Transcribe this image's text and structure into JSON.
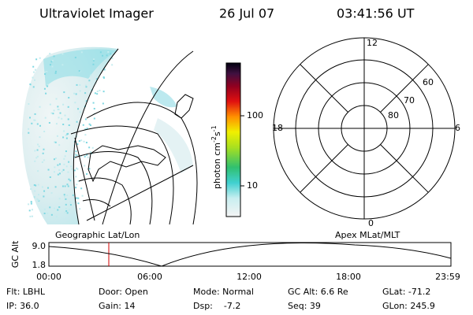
{
  "header": {
    "instrument": "Ultraviolet Imager",
    "date": "26 Jul 07",
    "time": "03:41:56 UT"
  },
  "colorbar": {
    "label": {
      "base": "photon cm",
      "exp1": "-2",
      "unit": "s",
      "exp2": "-1"
    },
    "ticks": [
      "100",
      "10"
    ]
  },
  "polar": {
    "hour_labels": {
      "top": "12",
      "left": "18",
      "right": "6",
      "bottom": "0"
    },
    "lat_labels": [
      "60",
      "70",
      "80"
    ]
  },
  "timeline": {
    "left_title": "Geographic Lat/Lon",
    "right_title": "Apex MLat/MLT",
    "y_label": "GC Alt",
    "y_ticks": [
      "9.0",
      "1.8"
    ],
    "x_ticks": [
      "00:00",
      "06:00",
      "12:00",
      "18:00",
      "23:59"
    ]
  },
  "status": [
    [
      "Flt: LBHL",
      "Door: Open",
      "Mode: Normal",
      "GC Alt: 6.6 Re",
      "GLat: -71.2"
    ],
    [
      "IP: 36.0",
      "Gain: 14",
      "Dsp:    -7.2",
      "Seq: 39",
      "GLon: 245.9"
    ]
  ]
}
